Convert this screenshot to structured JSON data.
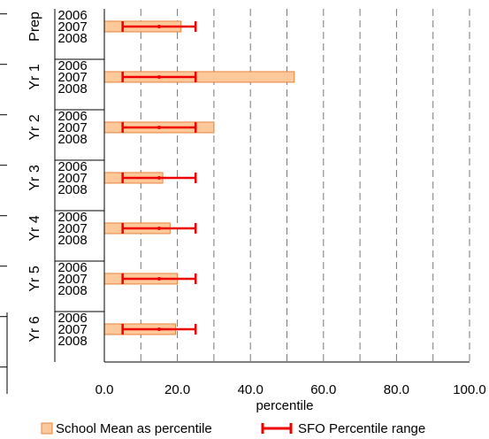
{
  "chart_data": {
    "type": "bar",
    "orientation": "horizontal",
    "xlabel": "percentile",
    "xlim": [
      0,
      100
    ],
    "xticks": [
      "0.0",
      "20.0",
      "40.0",
      "60.0",
      "80.0",
      "100.0"
    ],
    "grid": "vertical dashed every 10",
    "year_labels": [
      "2006",
      "2007",
      "2008"
    ],
    "groups": [
      {
        "label": "Prep",
        "school_mean": 21,
        "sfo_low": 5,
        "sfo_mid": 15,
        "sfo_high": 25
      },
      {
        "label": "Yr 1",
        "school_mean": 52,
        "sfo_low": 5,
        "sfo_mid": 15,
        "sfo_high": 25
      },
      {
        "label": "Yr 2",
        "school_mean": 30,
        "sfo_low": 5,
        "sfo_mid": 15,
        "sfo_high": 25
      },
      {
        "label": "Yr 3",
        "school_mean": 16,
        "sfo_low": 5,
        "sfo_mid": 15,
        "sfo_high": 25
      },
      {
        "label": "Yr 4",
        "school_mean": 18,
        "sfo_low": 5,
        "sfo_mid": 15,
        "sfo_high": 25
      },
      {
        "label": "Yr 5",
        "school_mean": 20,
        "sfo_low": 5,
        "sfo_mid": 15,
        "sfo_high": 25
      },
      {
        "label": "Yr 6",
        "school_mean": 19.5,
        "sfo_low": 5,
        "sfo_mid": 15,
        "sfo_high": 25
      }
    ],
    "legend": {
      "position": "bottom",
      "items": [
        {
          "label": "School Mean as percentile",
          "color": "#fdc89a",
          "stroke": "#e8843c"
        },
        {
          "label": "SFO Percentile range",
          "color": "#ee0000"
        }
      ]
    }
  }
}
